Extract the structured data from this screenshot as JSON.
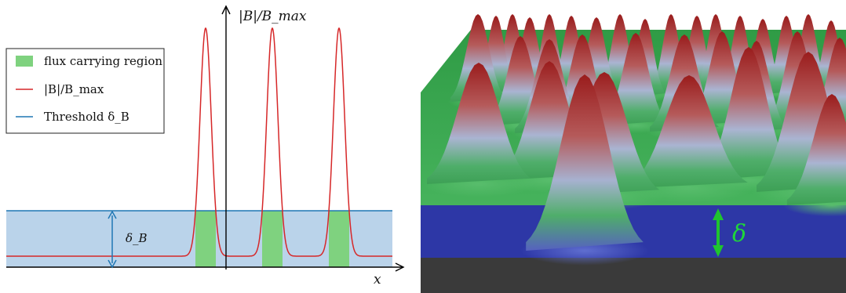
{
  "left_panel": {
    "y_axis_label": "|B|/B_max",
    "x_axis_label": "x",
    "delta_label": "δ_B",
    "legend": [
      {
        "label": "flux carrying region",
        "color": "#7fd27f"
      },
      {
        "label": "|B|/B_max",
        "color": "#d62728"
      },
      {
        "label": "Threshold δ_B",
        "color": "#1f77b4"
      }
    ],
    "band_color": "#bad3ea",
    "threshold_line_color": "#1f77b4",
    "curve_color": "#d62728",
    "flux_region_color": "#7fd27f"
  },
  "right_panel": {
    "delta_label": "δ",
    "plane_color": "#4ab460",
    "water_color": "#2a33a0",
    "base_color": "#3c3c3c",
    "peak_tip_color": "#a02020",
    "peak_mid_color": "#aeb8d4",
    "arrow_color": "#1fc42f"
  }
}
